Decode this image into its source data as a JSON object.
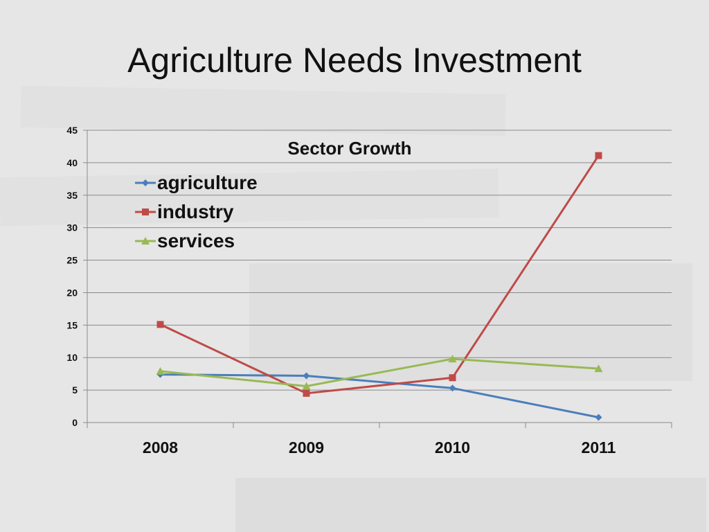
{
  "slide": {
    "title": "Agriculture Needs Investment"
  },
  "chart_data": {
    "type": "line",
    "title": "Sector Growth",
    "categories": [
      "2008",
      "2009",
      "2010",
      "2011"
    ],
    "series": [
      {
        "name": "agriculture",
        "values": [
          7.4,
          7.2,
          5.3,
          0.8
        ],
        "color": "#4a7ebb",
        "marker": "diamond"
      },
      {
        "name": "industry",
        "values": [
          15.1,
          4.5,
          6.9,
          41.1
        ],
        "color": "#be4b48",
        "marker": "square"
      },
      {
        "name": "services",
        "values": [
          7.9,
          5.6,
          9.8,
          8.3
        ],
        "color": "#98b954",
        "marker": "triangle"
      }
    ],
    "ylim": [
      0,
      45
    ],
    "yticks": [
      0,
      5,
      10,
      15,
      20,
      25,
      30,
      35,
      40,
      45
    ],
    "grid": true,
    "legend": "top-left"
  }
}
